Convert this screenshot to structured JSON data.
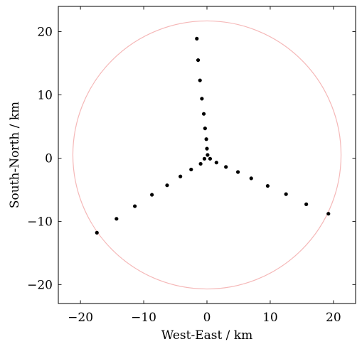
{
  "chart_data": {
    "type": "scatter",
    "xlabel": "West-East / km",
    "ylabel": "South-North / km",
    "xlim": [
      -23.5,
      23.5
    ],
    "ylim": [
      -23,
      24
    ],
    "xticks": [
      -20,
      -10,
      0,
      10,
      20
    ],
    "yticks": [
      -20,
      -10,
      0,
      10,
      20
    ],
    "xtick_labels": [
      "−20",
      "−10",
      "0",
      "10",
      "20"
    ],
    "ytick_labels": [
      "−20",
      "−10",
      "0",
      "10",
      "20"
    ],
    "grid": false,
    "legend": "none",
    "circle": {
      "cx": 0.0,
      "cy": 0.5,
      "r": 21.2,
      "color": "#f5b8b8"
    },
    "marker_color": "#000000",
    "series": [
      {
        "points": [
          [
            -1.6,
            18.9
          ],
          [
            -1.4,
            15.5
          ],
          [
            -1.1,
            12.3
          ],
          [
            -0.8,
            9.4
          ],
          [
            -0.5,
            7.0
          ],
          [
            -0.3,
            4.7
          ],
          [
            -0.1,
            3.0
          ],
          [
            0.0,
            1.5
          ],
          [
            0.1,
            0.5
          ],
          [
            -0.4,
            -0.1
          ],
          [
            -1.0,
            -0.9
          ],
          [
            -2.5,
            -1.8
          ],
          [
            -4.2,
            -2.9
          ],
          [
            -6.3,
            -4.3
          ],
          [
            -8.7,
            -5.8
          ],
          [
            -11.4,
            -7.6
          ],
          [
            -14.3,
            -9.6
          ],
          [
            -17.4,
            -11.8
          ],
          [
            0.5,
            -0.1
          ],
          [
            1.5,
            -0.7
          ],
          [
            3.0,
            -1.4
          ],
          [
            4.9,
            -2.2
          ],
          [
            7.0,
            -3.2
          ],
          [
            9.6,
            -4.4
          ],
          [
            12.5,
            -5.7
          ],
          [
            15.7,
            -7.3
          ],
          [
            19.2,
            -8.8
          ]
        ]
      }
    ]
  }
}
